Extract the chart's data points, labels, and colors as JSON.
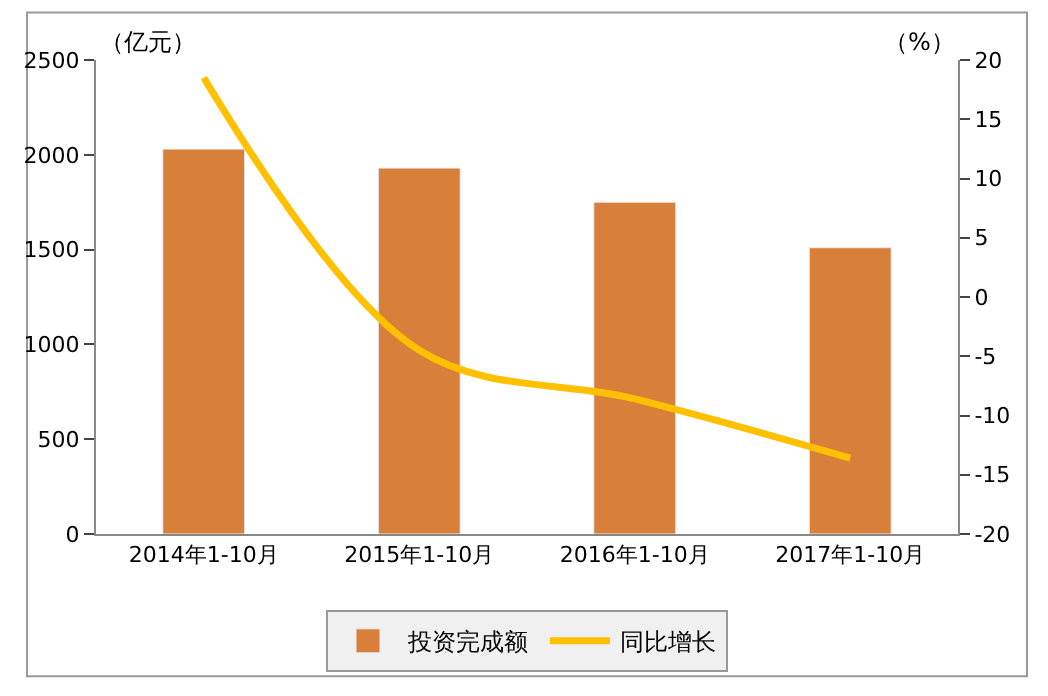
{
  "chart_data": {
    "type": "bar",
    "categories": [
      "2014年1-10月",
      "2015年1-10月",
      "2016年1-10月",
      "2017年1-10月"
    ],
    "ylabel": "（亿元）",
    "y2label": "（%）",
    "series": [
      {
        "name": "投资完成额",
        "color": "#d8803a",
        "values": [
          2030,
          1930,
          1750,
          1510
        ]
      },
      {
        "name": "同比增长",
        "type": "line",
        "axis": "y2",
        "color": "#ffc000",
        "values": [
          18.5,
          -4.5,
          -8.6,
          -13.6
        ]
      }
    ],
    "ylim": [
      0,
      2500
    ],
    "yticks": [
      0,
      500,
      1000,
      1500,
      2000,
      2500
    ],
    "y2lim": [
      -20,
      20
    ],
    "y2ticks": [
      -20,
      -15,
      -10,
      -5,
      0,
      5,
      10,
      15,
      20
    ],
    "legend": "bottom"
  }
}
